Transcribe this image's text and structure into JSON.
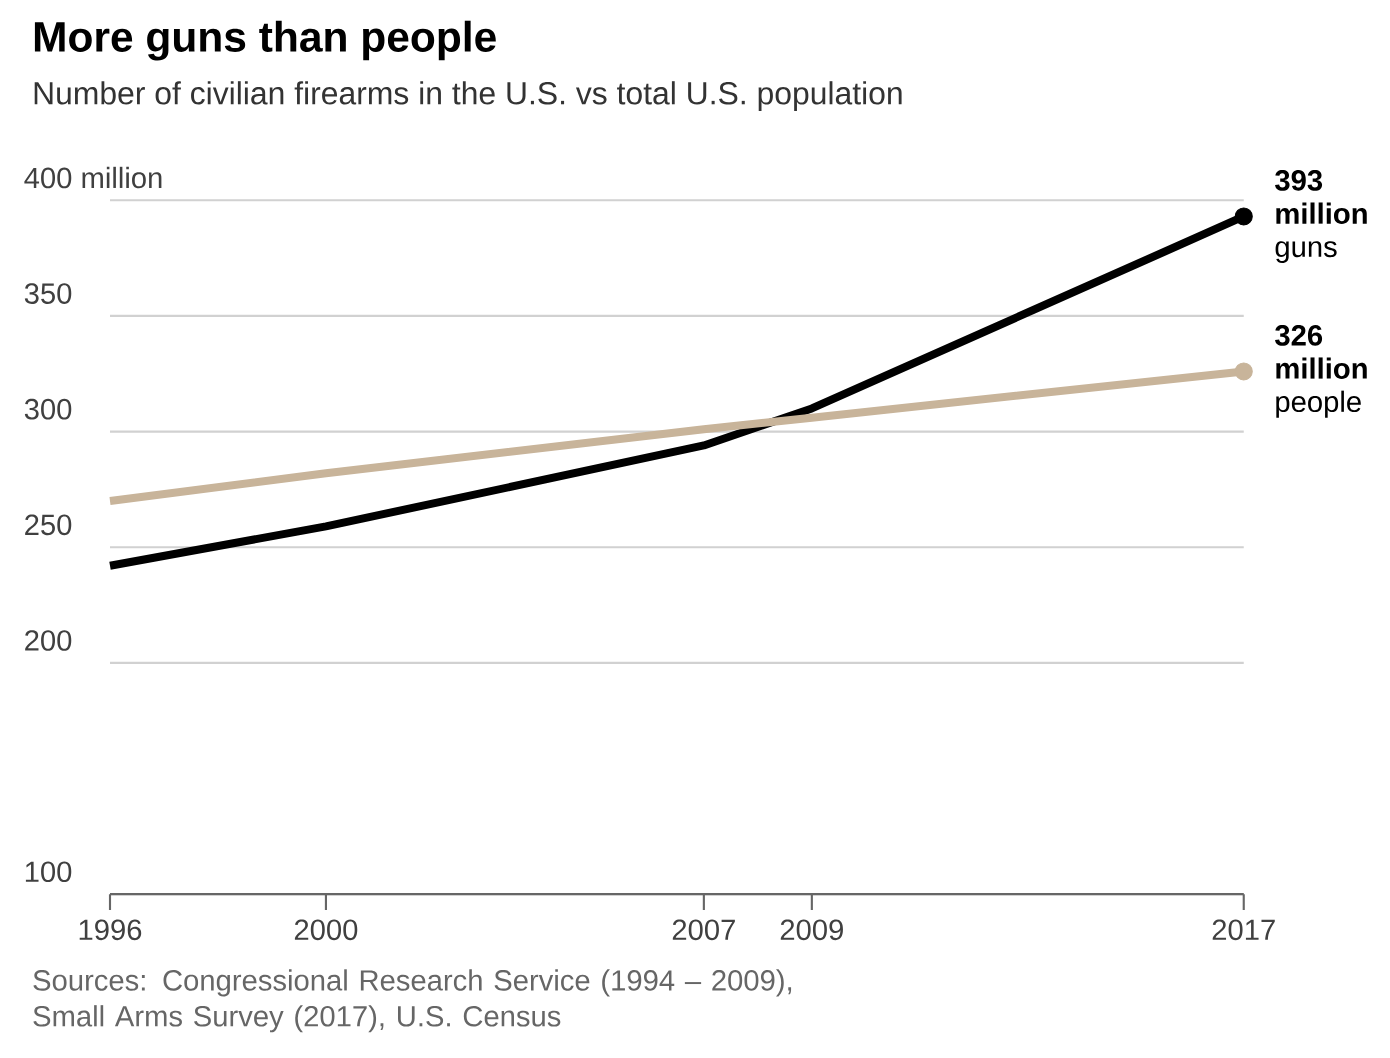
{
  "chart_data": {
    "type": "line",
    "title": "More guns than people",
    "subtitle": "Number of civilian firearms in the U.S. vs total U.S. population",
    "x": [
      1996,
      2000,
      2007,
      2009,
      2017
    ],
    "series": [
      {
        "color": "#000000",
        "values": [
          242,
          259,
          294,
          310,
          393
        ]
      },
      {
        "color": "#c8b49a",
        "values": [
          270,
          282,
          301,
          306,
          326
        ]
      },
      {
        "type": "scatter",
        "marker": "circle",
        "color": "#000000",
        "values": [
          null,
          null,
          null,
          null,
          393
        ]
      },
      {
        "type": "scatter",
        "marker": "circle",
        "color": "#c8b49a",
        "values": [
          null,
          null,
          null,
          null,
          326
        ]
      }
    ],
    "xlim": [
      1996,
      2017
    ],
    "ylim": [
      100,
      400
    ],
    "xticks": [
      1996,
      2000,
      2007,
      2009,
      2017
    ],
    "yticks": [
      100,
      200,
      250,
      300,
      350,
      {
        "value": 400,
        "label": "400 million"
      }
    ],
    "grid": "y",
    "line_style": "solid",
    "annotations": [
      {
        "text": "**393 million** guns",
        "x": 2017,
        "y": 393
      },
      {
        "text": "**326 million** people",
        "x": 2017,
        "y": 326
      },
      "Sources: Congressional Research Service (1994 – 2009), Small Arms Survey (2017), U.S. Census"
    ]
  }
}
